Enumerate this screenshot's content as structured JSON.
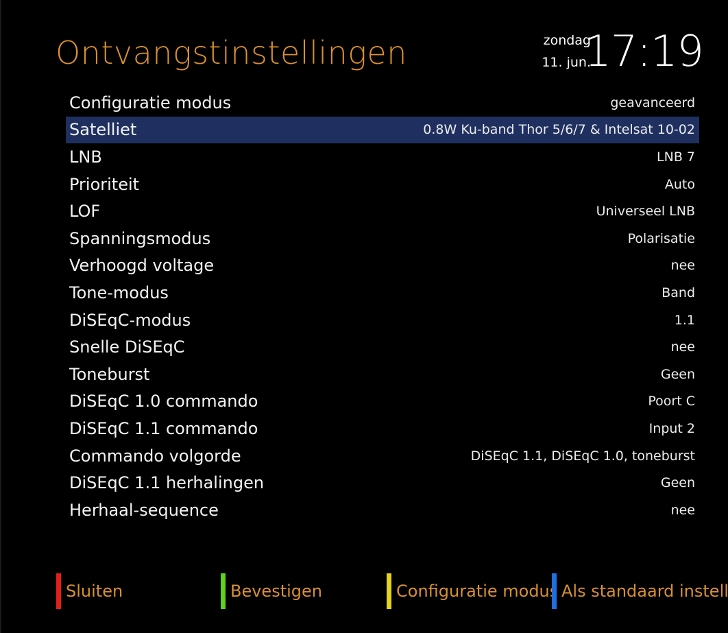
{
  "header": {
    "title": "Ontvangstinstellingen",
    "clock": {
      "day": "zondag",
      "date": "11. jun.",
      "time": "17:19"
    }
  },
  "settings": [
    {
      "label": "Configuratie modus",
      "value": "geavanceerd",
      "selected": false
    },
    {
      "label": "Satelliet",
      "value": "0.8W Ku-band Thor 5/6/7 & Intelsat 10-02",
      "selected": true
    },
    {
      "label": "LNB",
      "value": "LNB 7",
      "selected": false
    },
    {
      "label": "Prioriteit",
      "value": "Auto",
      "selected": false
    },
    {
      "label": "LOF",
      "value": "Universeel LNB",
      "selected": false
    },
    {
      "label": "Spanningsmodus",
      "value": "Polarisatie",
      "selected": false
    },
    {
      "label": "Verhoogd voltage",
      "value": "nee",
      "selected": false
    },
    {
      "label": "Tone-modus",
      "value": "Band",
      "selected": false
    },
    {
      "label": "DiSEqC-modus",
      "value": "1.1",
      "selected": false
    },
    {
      "label": "Snelle DiSEqC",
      "value": "nee",
      "selected": false
    },
    {
      "label": "Toneburst",
      "value": "Geen",
      "selected": false
    },
    {
      "label": "DiSEqC 1.0 commando",
      "value": "Poort C",
      "selected": false
    },
    {
      "label": "DiSEqC 1.1 commando",
      "value": "Input 2",
      "selected": false
    },
    {
      "label": "Commando volgorde",
      "value": "DiSEqC 1.1, DiSEqC 1.0, toneburst",
      "selected": false
    },
    {
      "label": "DiSEqC 1.1 herhalingen",
      "value": "Geen",
      "selected": false
    },
    {
      "label": "Herhaal-sequence",
      "value": "nee",
      "selected": false
    }
  ],
  "footer": {
    "red": {
      "label": "Sluiten",
      "color": "#e0201b"
    },
    "green": {
      "label": "Bevestigen",
      "color": "#5fd11f"
    },
    "yellow": {
      "label": "Configuratie modus",
      "color": "#e3d31b"
    },
    "blue": {
      "label": "Als standaard instellen",
      "color": "#1f6fe0"
    }
  },
  "colors": {
    "title": "#d9902f",
    "selection": "#1f3060",
    "background": "#000000"
  }
}
